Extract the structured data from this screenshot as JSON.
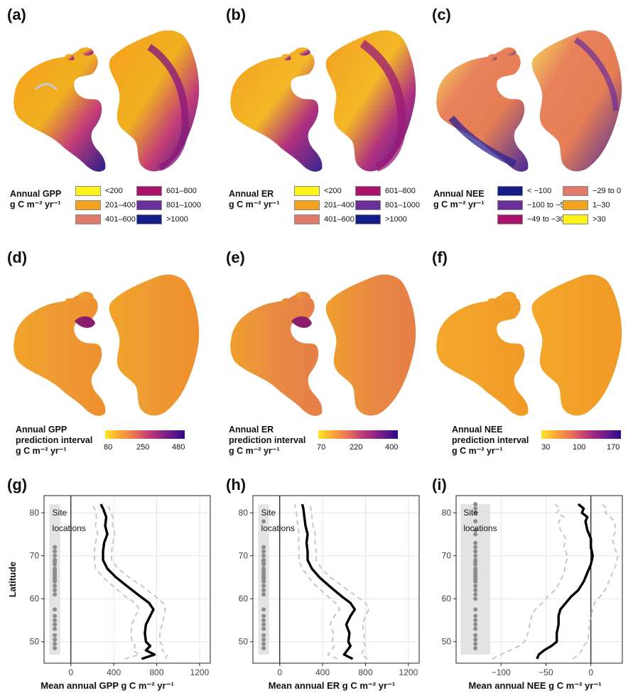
{
  "panels": {
    "a": "(a)",
    "b": "(b)",
    "c": "(c)",
    "d": "(d)",
    "e": "(e)",
    "f": "(f)",
    "g": "(g)",
    "h": "(h)",
    "i": "(i)"
  },
  "legends": {
    "gpp": {
      "title1": "Annual GPP",
      "title2": "g C m⁻² yr⁻¹",
      "items": [
        {
          "label": "<200",
          "color": "#fff419"
        },
        {
          "label": "201–400",
          "color": "#f4a31c"
        },
        {
          "label": "401–600",
          "color": "#e07a6b"
        },
        {
          "label": "601–800",
          "color": "#a8126b"
        },
        {
          "label": "801–1000",
          "color": "#6a2f9a"
        },
        {
          "label": ">1000",
          "color": "#141c8a"
        }
      ]
    },
    "er": {
      "title1": "Annual ER",
      "title2": "g C m⁻² yr⁻¹",
      "items": [
        {
          "label": "<200",
          "color": "#fff419"
        },
        {
          "label": "201–400",
          "color": "#f4a31c"
        },
        {
          "label": "401–600",
          "color": "#e07a6b"
        },
        {
          "label": "601–800",
          "color": "#a8126b"
        },
        {
          "label": "801–1000",
          "color": "#6a2f9a"
        },
        {
          "label": ">1000",
          "color": "#141c8a"
        }
      ]
    },
    "nee": {
      "title1": "Annual NEE",
      "title2": "g C m⁻² yr⁻¹",
      "items": [
        {
          "label": "< −100",
          "color": "#141c8a"
        },
        {
          "label": "−100 to −50",
          "color": "#6a2f9a"
        },
        {
          "label": "−49 to −30",
          "color": "#a8126b"
        },
        {
          "label": "−29 to 0",
          "color": "#e07a6b"
        },
        {
          "label": "1–30",
          "color": "#f4a31c"
        },
        {
          "label": ">30",
          "color": "#fff419"
        }
      ]
    },
    "gpp_pi": {
      "title1": "Annual GPP",
      "title2": "prediction interval",
      "title3": "g C m⁻² yr⁻¹",
      "ticks": [
        "80",
        "250",
        "480"
      ]
    },
    "er_pi": {
      "title1": "Annual ER",
      "title2": "prediction interval",
      "title3": "g C m⁻² yr⁻¹",
      "ticks": [
        "70",
        "220",
        "400"
      ]
    },
    "nee_pi": {
      "title1": "Annual NEE",
      "title2": "prediction interval",
      "title3": "g C m⁻² yr⁻¹",
      "ticks": [
        "30",
        "100",
        "170"
      ]
    }
  },
  "chart_data": [
    {
      "type": "line",
      "panel": "g",
      "xlabel": "Mean annual GPP  g C m⁻² yr⁻¹",
      "ylabel": "Latitude",
      "xlim": [
        -250,
        1300
      ],
      "ylim": [
        45,
        84
      ],
      "xticks": [
        0,
        400,
        800,
        1200
      ],
      "yticks": [
        50,
        60,
        70,
        80
      ],
      "annotation": [
        "Site",
        "locations"
      ],
      "site_band_x": [
        -200,
        -100
      ],
      "site_band_y": [
        47,
        82
      ],
      "sites": [
        48.5,
        49.5,
        50.5,
        51.5,
        53,
        54,
        55,
        56,
        57.5,
        61,
        62,
        63,
        64,
        64.5,
        65,
        65.5,
        66,
        66.5,
        67,
        68,
        68.5,
        69,
        70,
        71,
        72
      ],
      "series": [
        {
          "style": "mean",
          "x": [
            660,
            780,
            700,
            740,
            700,
            690,
            700,
            740,
            770,
            730,
            650,
            520,
            420,
            340,
            300,
            300,
            310,
            340,
            320,
            330,
            300,
            280
          ],
          "y": [
            46,
            47,
            48,
            49,
            50,
            52,
            54,
            56,
            57.5,
            59,
            60.5,
            63,
            65,
            67,
            69,
            71,
            73,
            75,
            77,
            79,
            81,
            82
          ]
        },
        {
          "style": "upper",
          "x": [
            880,
            900,
            850,
            860,
            830,
            830,
            850,
            870,
            880,
            860,
            790,
            660,
            540,
            440,
            380,
            380,
            390,
            410,
            390,
            390,
            360,
            330
          ],
          "y": [
            46,
            47,
            48,
            49,
            50,
            52,
            54,
            56,
            57.5,
            59,
            60.5,
            63,
            65,
            67,
            69,
            71,
            73,
            75,
            77,
            79,
            81,
            82
          ]
        },
        {
          "style": "lower",
          "x": [
            500,
            640,
            580,
            600,
            570,
            560,
            570,
            600,
            640,
            600,
            510,
            390,
            300,
            230,
            220,
            220,
            230,
            250,
            230,
            240,
            220,
            200
          ],
          "y": [
            46,
            47,
            48,
            49,
            50,
            52,
            54,
            56,
            57.5,
            59,
            60.5,
            63,
            65,
            67,
            69,
            71,
            73,
            75,
            77,
            79,
            81,
            82
          ]
        }
      ]
    },
    {
      "type": "line",
      "panel": "h",
      "xlabel": "Mean annual ER  g C m⁻² yr⁻¹",
      "ylabel": "",
      "xlim": [
        -250,
        1300
      ],
      "ylim": [
        45,
        84
      ],
      "xticks": [
        0,
        400,
        800,
        1200
      ],
      "yticks": [
        50,
        60,
        70,
        80
      ],
      "annotation": [
        "Site",
        "locations"
      ],
      "site_band_x": [
        -200,
        -100
      ],
      "site_band_y": [
        47,
        82
      ],
      "sites": [
        48.5,
        49.5,
        50.5,
        51.5,
        53,
        54,
        55,
        56,
        57.5,
        61,
        62,
        63,
        64,
        64.5,
        65,
        65.5,
        66,
        66.5,
        67,
        68,
        68.5,
        69,
        70,
        71,
        72,
        78
      ],
      "series": [
        {
          "style": "mean",
          "x": [
            680,
            600,
            630,
            660,
            640,
            650,
            620,
            660,
            700,
            660,
            580,
            460,
            370,
            300,
            260,
            260,
            250,
            260,
            240,
            230,
            220,
            210
          ],
          "y": [
            46,
            47,
            48,
            49,
            50,
            52,
            54,
            56,
            57.5,
            59,
            60.5,
            63,
            65,
            67,
            69,
            71,
            73,
            75,
            77,
            79,
            81,
            82
          ]
        },
        {
          "style": "upper",
          "x": [
            820,
            760,
            780,
            800,
            780,
            790,
            770,
            800,
            830,
            800,
            720,
            580,
            470,
            390,
            340,
            340,
            330,
            330,
            310,
            300,
            290,
            280
          ],
          "y": [
            46,
            47,
            48,
            49,
            50,
            52,
            54,
            56,
            57.5,
            59,
            60.5,
            63,
            65,
            67,
            69,
            71,
            73,
            75,
            77,
            79,
            81,
            82
          ]
        },
        {
          "style": "lower",
          "x": [
            540,
            450,
            480,
            510,
            490,
            500,
            470,
            510,
            560,
            520,
            450,
            340,
            270,
            210,
            180,
            180,
            175,
            180,
            170,
            160,
            150,
            140
          ],
          "y": [
            46,
            47,
            48,
            49,
            50,
            52,
            54,
            56,
            57.5,
            59,
            60.5,
            63,
            65,
            67,
            69,
            71,
            73,
            75,
            77,
            79,
            81,
            82
          ]
        }
      ]
    },
    {
      "type": "line",
      "panel": "i",
      "xlabel": "Mean annual NEE  g C m⁻² yr⁻¹",
      "ylabel": "",
      "xlim": [
        -150,
        35
      ],
      "ylim": [
        45,
        84
      ],
      "xticks": [
        -100,
        -50,
        0
      ],
      "yticks": [
        50,
        60,
        70,
        80
      ],
      "annotation": [
        "Site",
        "locations"
      ],
      "site_band_x": [
        -145,
        -112
      ],
      "site_band_y": [
        47,
        82
      ],
      "sites": [
        48.5,
        49.5,
        50.5,
        51.5,
        53,
        54,
        55,
        56,
        57.5,
        60,
        61,
        62,
        63,
        64,
        64.5,
        65,
        65.5,
        66,
        66.5,
        67,
        68,
        68.5,
        69,
        70,
        71,
        72,
        73,
        75,
        76,
        78,
        80,
        81,
        82
      ],
      "series": [
        {
          "style": "mean",
          "x": [
            -60,
            -58,
            -52,
            -44,
            -38,
            -38,
            -36,
            -36,
            -34,
            -28,
            -22,
            -14,
            -8,
            -4,
            0,
            2,
            0,
            0,
            -4,
            -6,
            -4,
            -10,
            -8,
            -14
          ],
          "y": [
            46,
            47,
            48,
            49,
            50,
            52,
            54,
            56,
            57.5,
            59,
            60.5,
            62,
            64,
            66,
            68,
            70,
            72,
            74,
            76,
            78,
            79,
            80,
            81,
            82
          ]
        },
        {
          "style": "upper",
          "x": [
            -20,
            -14,
            -10,
            -8,
            -4,
            -2,
            -2,
            0,
            2,
            4,
            10,
            16,
            20,
            24,
            28,
            30,
            26,
            24,
            28,
            26,
            22,
            16,
            18,
            12
          ],
          "y": [
            46,
            47,
            48,
            49,
            50,
            52,
            54,
            56,
            57.5,
            59,
            60.5,
            62,
            64,
            66,
            68,
            70,
            72,
            74,
            76,
            78,
            79,
            80,
            81,
            82
          ]
        },
        {
          "style": "lower",
          "x": [
            -110,
            -100,
            -90,
            -80,
            -74,
            -70,
            -68,
            -66,
            -62,
            -54,
            -48,
            -40,
            -34,
            -30,
            -28,
            -26,
            -30,
            -28,
            -34,
            -36,
            -30,
            -38,
            -34,
            -40
          ],
          "y": [
            46,
            47,
            48,
            49,
            50,
            52,
            54,
            56,
            57.5,
            59,
            60.5,
            62,
            64,
            66,
            68,
            70,
            72,
            74,
            76,
            78,
            79,
            80,
            81,
            82
          ]
        }
      ]
    }
  ]
}
